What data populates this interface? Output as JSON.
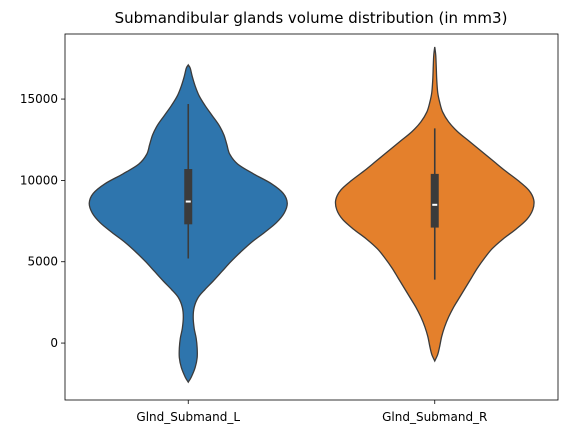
{
  "chart_data": {
    "type": "violin",
    "title": "Submandibular glands volume distribution (in mm3)",
    "xlabel": "",
    "ylabel": "",
    "ylim": [
      -3500,
      19000
    ],
    "yticks": [
      0,
      5000,
      10000,
      15000
    ],
    "grid": false,
    "categories": [
      "Glnd_Submand_L",
      "Glnd_Submand_R"
    ],
    "series": [
      {
        "category": "Glnd_Submand_L",
        "color": "#2e75ad",
        "min": 5200,
        "q1": 7300,
        "median": 8700,
        "q3": 10700,
        "max": 14700,
        "density": [
          [
            -2400,
            0
          ],
          [
            -2100,
            0.03
          ],
          [
            -1500,
            0.07
          ],
          [
            -900,
            0.09
          ],
          [
            -300,
            0.09
          ],
          [
            300,
            0.08
          ],
          [
            900,
            0.06
          ],
          [
            1600,
            0.05
          ],
          [
            2200,
            0.06
          ],
          [
            2800,
            0.1
          ],
          [
            3300,
            0.17
          ],
          [
            3800,
            0.25
          ],
          [
            4400,
            0.34
          ],
          [
            5000,
            0.43
          ],
          [
            5600,
            0.53
          ],
          [
            6200,
            0.64
          ],
          [
            6800,
            0.77
          ],
          [
            7400,
            0.89
          ],
          [
            8000,
            0.97
          ],
          [
            8600,
            1.0
          ],
          [
            9200,
            0.96
          ],
          [
            9800,
            0.84
          ],
          [
            10400,
            0.66
          ],
          [
            11000,
            0.5
          ],
          [
            11600,
            0.42
          ],
          [
            12200,
            0.39
          ],
          [
            12800,
            0.36
          ],
          [
            13400,
            0.31
          ],
          [
            14000,
            0.24
          ],
          [
            14600,
            0.17
          ],
          [
            15200,
            0.11
          ],
          [
            15800,
            0.07
          ],
          [
            16400,
            0.04
          ],
          [
            16900,
            0.02
          ],
          [
            17100,
            0
          ]
        ]
      },
      {
        "category": "Glnd_Submand_R",
        "color": "#e4802c",
        "min": 3900,
        "q1": 7100,
        "median": 8500,
        "q3": 10400,
        "max": 13200,
        "density": [
          [
            -1100,
            0
          ],
          [
            -700,
            0.03
          ],
          [
            -200,
            0.05
          ],
          [
            400,
            0.07
          ],
          [
            1000,
            0.1
          ],
          [
            1600,
            0.14
          ],
          [
            2200,
            0.19
          ],
          [
            2800,
            0.25
          ],
          [
            3400,
            0.31
          ],
          [
            4000,
            0.37
          ],
          [
            4600,
            0.43
          ],
          [
            5200,
            0.5
          ],
          [
            5800,
            0.58
          ],
          [
            6400,
            0.69
          ],
          [
            7000,
            0.82
          ],
          [
            7600,
            0.93
          ],
          [
            8200,
            0.99
          ],
          [
            8800,
            1.0
          ],
          [
            9400,
            0.95
          ],
          [
            10000,
            0.84
          ],
          [
            10600,
            0.71
          ],
          [
            11200,
            0.59
          ],
          [
            11800,
            0.47
          ],
          [
            12400,
            0.35
          ],
          [
            13000,
            0.23
          ],
          [
            13600,
            0.14
          ],
          [
            14200,
            0.08
          ],
          [
            14800,
            0.05
          ],
          [
            15400,
            0.03
          ],
          [
            16200,
            0.02
          ],
          [
            17000,
            0.015
          ],
          [
            17700,
            0.01
          ],
          [
            18200,
            0
          ]
        ]
      }
    ]
  }
}
